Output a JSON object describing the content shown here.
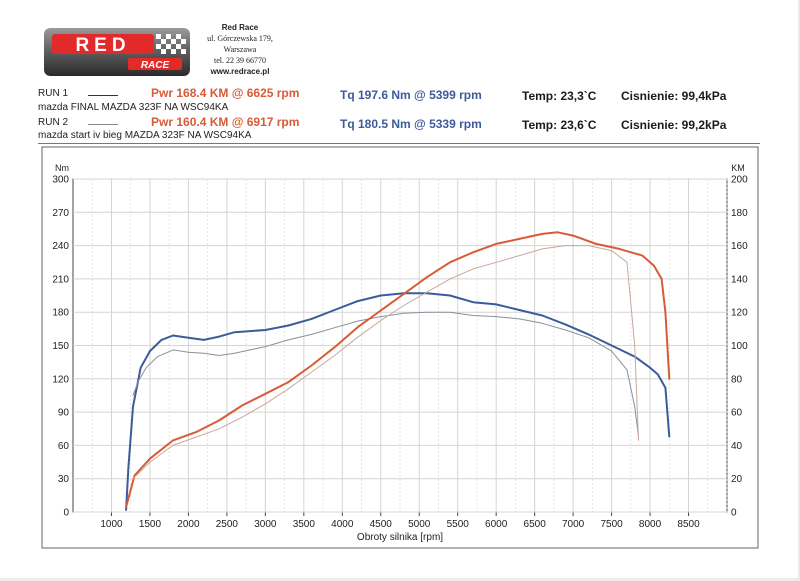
{
  "header": {
    "company_name": "Red Race",
    "address_line1": "ul. Górczewska 179,",
    "address_line2": "Warszawa",
    "phone": "tel. 22 39 66770",
    "website": "www.redrace.pl",
    "logo_text_main": "RED",
    "logo_text_sub": "RACE"
  },
  "runs": [
    {
      "label": "RUN 1",
      "description": "mazda FINAL MAZDA 323F NA WSC94KA",
      "power_summary": "Pwr  168.4 KM @ 6625 rpm",
      "torque_summary": "Tq 197.6 Nm @ 5399 rpm",
      "temp": "Temp: 23,3`C",
      "pressure": "Cisnienie: 99,4kPa"
    },
    {
      "label": "RUN 2",
      "description": "mazda start iv bieg MAZDA 323F NA WSC94KA",
      "power_summary": "Pwr  160.4 KM @ 6917 rpm",
      "torque_summary": "Tq 180.5 Nm @ 5339 rpm",
      "temp": "Temp: 23,6`C",
      "pressure": "Cisnienie: 99,2kPa"
    }
  ],
  "colors": {
    "power": "#d75b36",
    "torque": "#3d5a9a",
    "power_run2": "#c9a79a",
    "torque_run2": "#8a8f9e",
    "grid": "#d4d4d4",
    "axis": "#444444"
  },
  "chart_data": {
    "type": "line",
    "xlabel": "Obroty silnika [rpm]",
    "ylabel": "Nm",
    "y2label": "KM",
    "xlim": [
      500,
      9000
    ],
    "ylim": [
      0,
      300
    ],
    "y2lim": [
      0,
      200
    ],
    "x_ticks": [
      1000,
      1500,
      2000,
      2500,
      3000,
      3500,
      4000,
      4500,
      5000,
      5500,
      6000,
      6500,
      7000,
      7500,
      8000,
      8500
    ],
    "y_ticks": [
      0,
      30,
      60,
      90,
      120,
      150,
      180,
      210,
      240,
      270,
      300
    ],
    "y2_ticks": [
      0,
      20,
      40,
      60,
      80,
      100,
      120,
      140,
      160,
      180,
      200
    ],
    "grid": true,
    "series": [
      {
        "key": "run1_torque",
        "axis": "left",
        "run": "RUN 1",
        "quantity": "torque",
        "x": [
          1190,
          1220,
          1280,
          1380,
          1500,
          1650,
          1800,
          2000,
          2200,
          2400,
          2600,
          2800,
          3000,
          3300,
          3600,
          3900,
          4200,
          4500,
          4800,
          5100,
          5400,
          5700,
          6000,
          6300,
          6600,
          6900,
          7200,
          7500,
          7800,
          8000,
          8100,
          8200,
          8250
        ],
        "y": [
          2,
          40,
          95,
          130,
          145,
          155,
          159,
          157,
          155,
          158,
          162,
          163,
          164,
          168,
          174,
          182,
          190,
          195,
          197,
          197,
          195,
          189,
          187,
          182,
          177,
          169,
          160,
          150,
          140,
          130,
          124,
          112,
          68
        ]
      },
      {
        "key": "run2_torque",
        "axis": "left",
        "run": "RUN 2",
        "quantity": "torque",
        "x": [
          1280,
          1350,
          1450,
          1600,
          1800,
          2000,
          2200,
          2400,
          2600,
          2800,
          3000,
          3300,
          3600,
          3900,
          4200,
          4500,
          4800,
          5100,
          5400,
          5700,
          6000,
          6300,
          6600,
          6900,
          7200,
          7500,
          7700,
          7800,
          7850
        ],
        "y": [
          105,
          118,
          130,
          140,
          146,
          144,
          143,
          141,
          143,
          146,
          149,
          155,
          160,
          166,
          172,
          176,
          179,
          180,
          180,
          177,
          176,
          174,
          170,
          164,
          157,
          145,
          128,
          95,
          68
        ]
      },
      {
        "key": "run1_power",
        "axis": "right",
        "run": "RUN 1",
        "quantity": "power",
        "x": [
          1190,
          1300,
          1500,
          1800,
          2100,
          2400,
          2700,
          3000,
          3300,
          3600,
          3900,
          4200,
          4500,
          4800,
          5100,
          5400,
          5700,
          6000,
          6300,
          6600,
          6800,
          7000,
          7300,
          7600,
          7900,
          8050,
          8150,
          8200,
          8250
        ],
        "y": [
          3,
          22,
          32,
          43,
          48,
          55,
          64,
          71,
          78,
          88,
          99,
          111,
          121,
          131,
          141,
          150,
          156,
          161,
          164,
          167,
          168,
          166,
          161,
          158,
          154,
          148,
          140,
          120,
          80
        ]
      },
      {
        "key": "run2_power",
        "axis": "right",
        "run": "RUN 2",
        "quantity": "power",
        "x": [
          1280,
          1500,
          1800,
          2100,
          2400,
          2700,
          3000,
          3300,
          3600,
          3900,
          4200,
          4500,
          4800,
          5100,
          5400,
          5700,
          6000,
          6300,
          6600,
          6900,
          7200,
          7500,
          7700,
          7800,
          7850
        ],
        "y": [
          20,
          30,
          40,
          45,
          50,
          57,
          65,
          74,
          84,
          94,
          105,
          115,
          124,
          132,
          140,
          146,
          150,
          154,
          158,
          160,
          160,
          157,
          150,
          100,
          43
        ]
      }
    ]
  }
}
